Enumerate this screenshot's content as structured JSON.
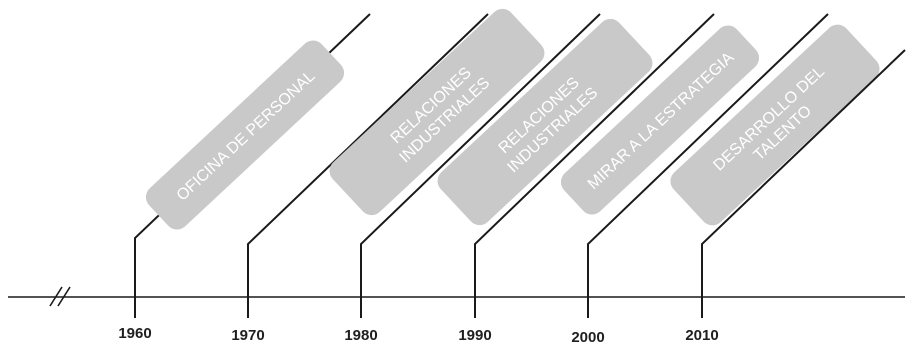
{
  "timeline": {
    "stages": [
      {
        "lines": [
          "OFICINA DE PERSONAL"
        ]
      },
      {
        "lines": [
          "RELACIONES",
          "INDUSTRIALES"
        ]
      },
      {
        "lines": [
          "RELACIONES",
          "INDUSTRIALES"
        ]
      },
      {
        "lines": [
          "MIRAR A LA  ESTRATEGIA"
        ]
      },
      {
        "lines": [
          "DESARROLLO DEL",
          "TALENTO"
        ]
      }
    ],
    "years": [
      "1960",
      "1970",
      "1980",
      "1990",
      "2000",
      "2010"
    ]
  }
}
